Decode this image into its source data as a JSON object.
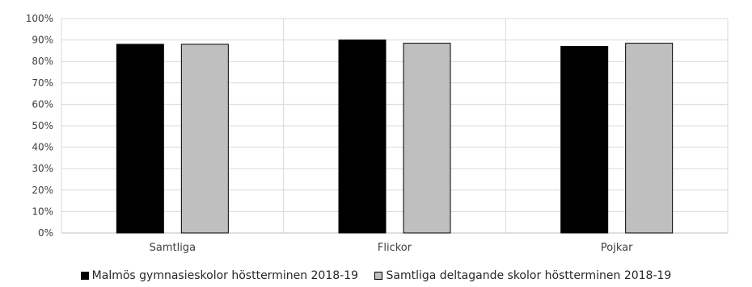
{
  "chart_data": {
    "type": "bar",
    "categories": [
      "Samtliga",
      "Flickor",
      "Pojkar"
    ],
    "series": [
      {
        "name": "Malmös gymnasieskolor höstterminen 2018-19",
        "values": [
          88,
          90,
          87
        ],
        "color": "#000000"
      },
      {
        "name": "Samtliga deltagande skolor höstterminen 2018-19",
        "values": [
          88,
          88.5,
          88.5
        ],
        "color": "#bfbfbf"
      }
    ],
    "ylim": [
      0,
      100
    ],
    "yticks": [
      "0%",
      "10%",
      "20%",
      "30%",
      "40%",
      "50%",
      "60%",
      "70%",
      "80%",
      "90%",
      "100%"
    ],
    "grid": true,
    "legend_position": "bottom"
  }
}
